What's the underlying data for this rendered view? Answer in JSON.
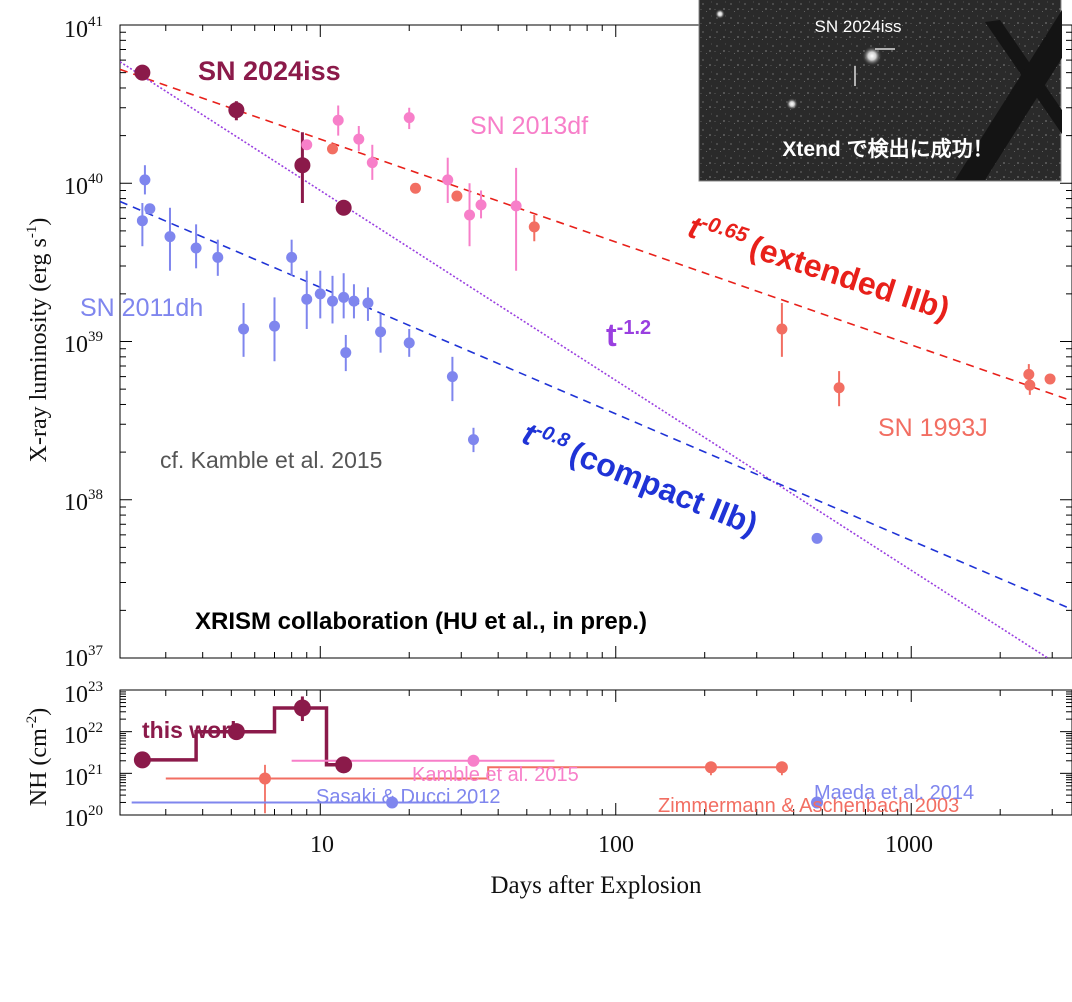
{
  "chart_data": [
    {
      "type": "scatter",
      "x_scale": "log",
      "y_scale": "log",
      "xlim": [
        2.1,
        3500
      ],
      "ylim": [
        1e+37,
        1e+41
      ],
      "ylabel_main": "X-ray luminosity (erg s",
      "ylabel_sup": "-1",
      "ylabel_end": ")",
      "y_tick_labels": [
        {
          "value": 1e+37,
          "base": "10",
          "exp": "37"
        },
        {
          "value": 1e+38,
          "base": "10",
          "exp": "38"
        },
        {
          "value": 1e+39,
          "base": "10",
          "exp": "39"
        },
        {
          "value": 1e+40,
          "base": "10",
          "exp": "40"
        },
        {
          "value": 1e+41,
          "base": "10",
          "exp": "41"
        }
      ],
      "series": [
        {
          "name": "SN 2024iss",
          "color": "#8b1a4a",
          "points": [
            {
              "x": 2.5,
              "y": 5e+40
            },
            {
              "x": 5.2,
              "y": 2.9e+40,
              "ylo": 2.5e+40,
              "yhi": 3.3e+40
            },
            {
              "x": 8.7,
              "y": 1.3e+40,
              "ylo": 7.5e+39,
              "yhi": 2.1e+40
            },
            {
              "x": 12.0,
              "y": 7e+39
            }
          ]
        },
        {
          "name": "SN 2013df",
          "color": "#f77fc9",
          "points": [
            {
              "x": 9.0,
              "y": 1.75e+40
            },
            {
              "x": 11.5,
              "y": 2.5e+40,
              "ylo": 2e+40,
              "yhi": 3.1e+40
            },
            {
              "x": 13.5,
              "y": 1.9e+40,
              "ylo": 1.6e+40,
              "yhi": 2.3e+40
            },
            {
              "x": 15.0,
              "y": 1.35e+40,
              "ylo": 1.05e+40,
              "yhi": 1.75e+40
            },
            {
              "x": 20.0,
              "y": 2.6e+40,
              "ylo": 2.2e+40,
              "yhi": 3e+40
            },
            {
              "x": 27.0,
              "y": 1.05e+40,
              "ylo": 7.5e+39,
              "yhi": 1.45e+40
            },
            {
              "x": 32.0,
              "y": 6.3e+39,
              "ylo": 4e+39,
              "yhi": 1e+40
            },
            {
              "x": 35.0,
              "y": 7.3e+39,
              "ylo": 6e+39,
              "yhi": 9e+39
            },
            {
              "x": 46.0,
              "y": 7.2e+39,
              "ylo": 2.8e+39,
              "yhi": 1.25e+40
            }
          ]
        },
        {
          "name": "SN 1993J",
          "color": "#f26e62",
          "points": [
            {
              "x": 11.0,
              "y": 1.65e+40
            },
            {
              "x": 21.0,
              "y": 9.3e+39
            },
            {
              "x": 29.0,
              "y": 8.3e+39
            },
            {
              "x": 53.0,
              "y": 5.3e+39,
              "ylo": 4.3e+39,
              "yhi": 6.3e+39
            },
            {
              "x": 365,
              "y": 1.2e+39,
              "ylo": 8e+38,
              "yhi": 1.75e+39
            },
            {
              "x": 570,
              "y": 5.1e+38,
              "ylo": 3.9e+38,
              "yhi": 6.5e+38
            },
            {
              "x": 2500,
              "y": 6.2e+38,
              "ylo": 5.3e+38,
              "yhi": 7.2e+38
            },
            {
              "x": 2520,
              "y": 5.3e+38,
              "ylo": 4.6e+38,
              "yhi": 6.1e+38
            },
            {
              "x": 2950,
              "y": 5.8e+38
            }
          ]
        },
        {
          "name": "SN 2011dh",
          "color": "#7f86ee",
          "points": [
            {
              "x": 2.5,
              "y": 5.8e+39,
              "ylo": 4e+39,
              "yhi": 7.5e+39
            },
            {
              "x": 2.55,
              "y": 1.05e+40,
              "ylo": 8.5e+39,
              "yhi": 1.3e+40
            },
            {
              "x": 2.65,
              "y": 6.9e+39
            },
            {
              "x": 3.1,
              "y": 4.6e+39,
              "ylo": 2.8e+39,
              "yhi": 7e+39
            },
            {
              "x": 3.8,
              "y": 3.9e+39,
              "ylo": 2.9e+39,
              "yhi": 5.5e+39
            },
            {
              "x": 4.5,
              "y": 3.4e+39,
              "ylo": 2.6e+39,
              "yhi": 4.4e+39
            },
            {
              "x": 5.5,
              "y": 1.2e+39,
              "ylo": 8e+38,
              "yhi": 1.75e+39
            },
            {
              "x": 7.0,
              "y": 1.25e+39,
              "ylo": 7.5e+38,
              "yhi": 1.9e+39
            },
            {
              "x": 8.0,
              "y": 3.4e+39,
              "ylo": 2.6e+39,
              "yhi": 4.4e+39
            },
            {
              "x": 9.0,
              "y": 1.85e+39,
              "ylo": 1.2e+39,
              "yhi": 2.8e+39
            },
            {
              "x": 10.0,
              "y": 2e+39,
              "ylo": 1.4e+39,
              "yhi": 2.8e+39
            },
            {
              "x": 11.0,
              "y": 1.8e+39,
              "ylo": 1.3e+39,
              "yhi": 2.6e+39
            },
            {
              "x": 12.0,
              "y": 1.9e+39,
              "ylo": 1.4e+39,
              "yhi": 2.7e+39
            },
            {
              "x": 12.2,
              "y": 8.5e+38,
              "ylo": 6.5e+38,
              "yhi": 1.1e+39
            },
            {
              "x": 13.0,
              "y": 1.8e+39,
              "ylo": 1.4e+39,
              "yhi": 2.3e+39
            },
            {
              "x": 14.5,
              "y": 1.75e+39,
              "ylo": 1.35e+39,
              "yhi": 2.2e+39
            },
            {
              "x": 16.0,
              "y": 1.15e+39,
              "ylo": 8.5e+38,
              "yhi": 1.5e+39
            },
            {
              "x": 20.0,
              "y": 9.8e+38,
              "ylo": 8e+38,
              "yhi": 1.2e+39
            },
            {
              "x": 28.0,
              "y": 6e+38,
              "ylo": 4.2e+38,
              "yhi": 8e+38
            },
            {
              "x": 33.0,
              "y": 2.4e+38,
              "ylo": 2e+38,
              "yhi": 2.85e+38
            },
            {
              "x": 480,
              "y": 5.7e+37
            }
          ]
        }
      ],
      "power_laws": [
        {
          "label_base": "t",
          "label_exp": "-0.65",
          "label_text": "(extended IIb)",
          "color": "#e8201a",
          "dash": "dashed",
          "index": -0.65,
          "anchor_x": 10,
          "anchor_y": 1.9e+40
        },
        {
          "label_base": "t",
          "label_exp": "-1.2",
          "label_text": "",
          "color": "#9a3fe0",
          "dash": "dotted",
          "index": -1.2,
          "anchor_x": 10,
          "anchor_y": 9e+39
        },
        {
          "label_base": "t",
          "label_exp": "-0.8",
          "label_text": "(compact IIb)",
          "color": "#1f33d6",
          "dash": "dashed",
          "index": -0.8,
          "anchor_x": 10,
          "anchor_y": 2.2e+39
        }
      ],
      "annotations": {
        "sn2024iss": "SN 2024iss",
        "sn2013df": "SN 2013df",
        "sn2011dh": "SN 2011dh",
        "sn1993j": "SN 1993J",
        "kamble_ref": "cf. Kamble et al. 2015",
        "collab": "XRISM collaboration (HU et al., in prep.)"
      },
      "inset": {
        "source_label": "SN 2024iss",
        "caption": "Xtend で検出に成功！"
      }
    },
    {
      "type": "scatter",
      "x_scale": "log",
      "y_scale": "log",
      "xlim": [
        2.1,
        3500
      ],
      "ylim": [
        1e+20,
        1e+23
      ],
      "xlabel": "Days after Explosion",
      "ylabel_main": "NH (cm",
      "ylabel_sup": "-2",
      "ylabel_end": ")",
      "x_tick_labels": [
        {
          "value": 10,
          "text": "10"
        },
        {
          "value": 100,
          "text": "100"
        },
        {
          "value": 1000,
          "text": "1000"
        }
      ],
      "y_tick_labels": [
        {
          "value": 1e+20,
          "base": "10",
          "exp": "20"
        },
        {
          "value": 1e+21,
          "base": "10",
          "exp": "21"
        },
        {
          "value": 1e+22,
          "base": "10",
          "exp": "22"
        },
        {
          "value": 1e+23,
          "base": "10",
          "exp": "23"
        }
      ],
      "this_work": {
        "label": "this work",
        "color": "#8b1a4a",
        "step": [
          [
            2.5,
            2.1e+21
          ],
          [
            3.8,
            2.1e+21
          ],
          [
            3.8,
            1e+22
          ],
          [
            7.0,
            1e+22
          ],
          [
            7.0,
            3.7e+22
          ],
          [
            10.5,
            3.7e+22
          ],
          [
            10.5,
            1.6e+21
          ],
          [
            12.0,
            1.6e+21
          ]
        ],
        "points": [
          {
            "x": 2.5,
            "y": 2.1e+21,
            "ylo": 1.6e+21,
            "yhi": 2.9e+21
          },
          {
            "x": 5.2,
            "y": 1e+22,
            "ylo": 8e+21,
            "yhi": 1.3e+22
          },
          {
            "x": 8.7,
            "y": 3.7e+22,
            "ylo": 1.8e+22,
            "yhi": 7e+22
          },
          {
            "x": 12.0,
            "y": 1.6e+21
          }
        ]
      },
      "references": [
        {
          "label": "Kamble et al. 2015",
          "color": "#f77fc9",
          "x": 33,
          "y": 2e+21,
          "xmin": 8,
          "xmax": 62
        },
        {
          "label": "Zimmermann & Aschenbach 2003",
          "color": "#f26e62",
          "step": [
            [
              3,
              7.5e+20
            ],
            [
              37,
              7.5e+20
            ],
            [
              37,
              1.4e+21
            ],
            [
              370,
              1.4e+21
            ]
          ],
          "points": [
            {
              "x": 6.5,
              "y": 7.5e+20,
              "ylo": 1.1e+20,
              "yhi": 1.6e+21
            },
            {
              "x": 210,
              "y": 1.4e+21,
              "ylo": 9e+20,
              "yhi": 1.6e+21
            },
            {
              "x": 365,
              "y": 1.4e+21,
              "ylo": 9e+20,
              "yhi": 1.6e+21
            }
          ]
        },
        {
          "label": "Sasaki & Ducci 2012",
          "color": "#7f86ee",
          "x": 17.5,
          "y": 2e+20,
          "xmin": 2.3,
          "xmax": 33
        },
        {
          "label": "Maeda et al. 2014",
          "color": "#7f86ee",
          "x": 480,
          "y": 2e+20
        }
      ]
    }
  ]
}
